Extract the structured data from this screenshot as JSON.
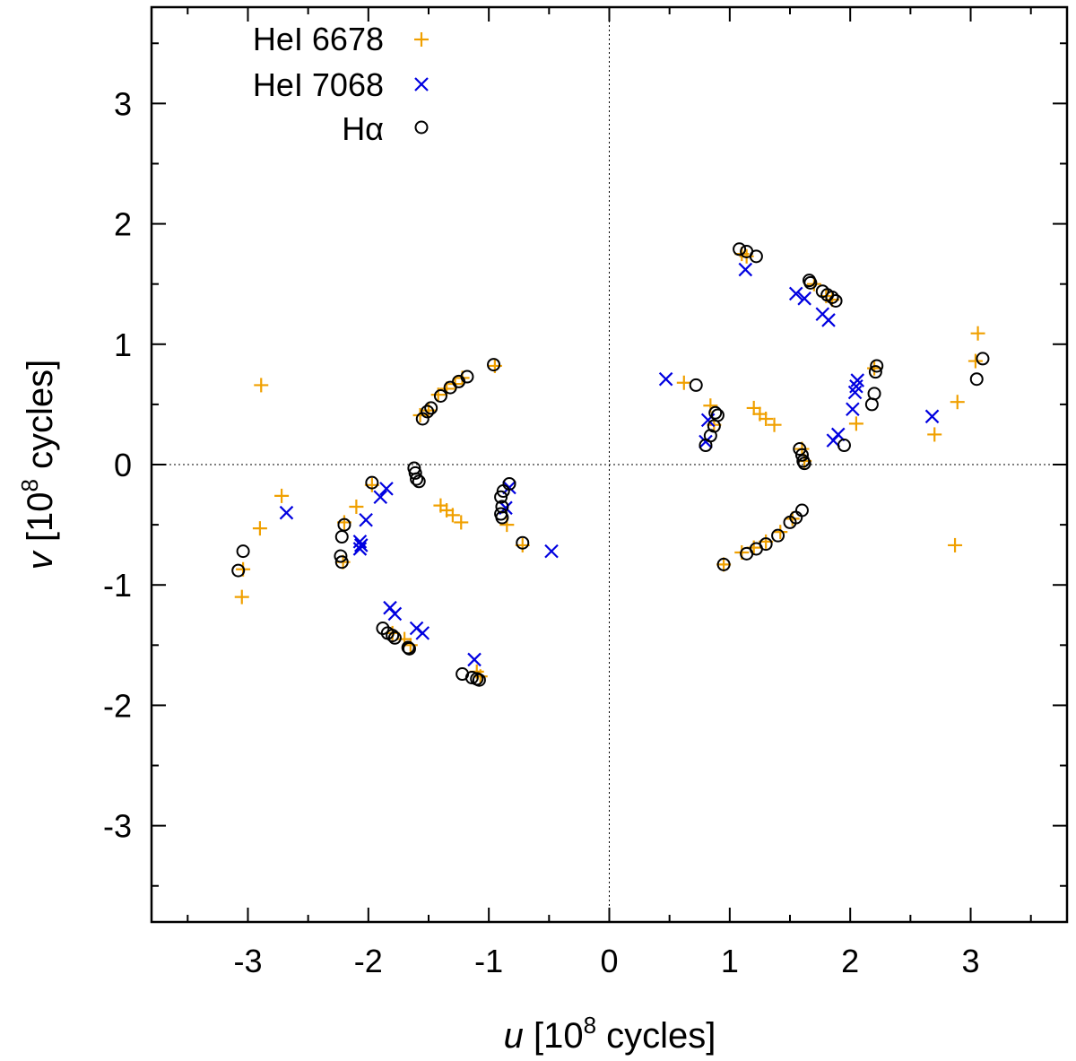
{
  "chart_data": {
    "type": "scatter",
    "title": "",
    "xlabel": {
      "var": "u",
      "unit_pre": " [10",
      "exp": "8",
      "unit_post": " cycles]"
    },
    "ylabel": {
      "var": "v",
      "unit_pre": " [10",
      "exp": "8",
      "unit_post": " cycles]"
    },
    "xlim": [
      -3.8,
      3.8
    ],
    "ylim": [
      -3.8,
      3.8
    ],
    "xticks": [
      -3,
      -2,
      -1,
      0,
      1,
      2,
      3
    ],
    "yticks": [
      -3,
      -2,
      -1,
      0,
      1,
      2,
      3
    ],
    "xtick_labels": [
      "-3",
      "-2",
      "-1",
      "0",
      "1",
      "2",
      "3"
    ],
    "ytick_labels": [
      "-3",
      "-2",
      "-1",
      "0",
      "1",
      "2",
      "3"
    ],
    "zero_lines": true,
    "legend_position": "top-left",
    "series": [
      {
        "name": "HeI 6678",
        "marker": "plus",
        "color": "#f0a000",
        "points": [
          [
            -2.89,
            0.66
          ],
          [
            3.06,
            1.09
          ],
          [
            3.04,
            0.86
          ],
          [
            2.89,
            0.52
          ],
          [
            2.7,
            0.25
          ],
          [
            2.87,
            -0.67
          ],
          [
            -2.9,
            -0.53
          ],
          [
            -2.72,
            -0.26
          ],
          [
            -3.04,
            -0.87
          ],
          [
            -3.05,
            -1.1
          ],
          [
            -1.57,
            0.41
          ],
          [
            -1.5,
            0.45
          ],
          [
            -1.42,
            0.58
          ],
          [
            -1.35,
            0.63
          ],
          [
            -1.28,
            0.67
          ],
          [
            -1.22,
            0.72
          ],
          [
            -0.95,
            0.82
          ],
          [
            -1.4,
            -0.34
          ],
          [
            -1.35,
            -0.38
          ],
          [
            -1.3,
            -0.42
          ],
          [
            -1.23,
            -0.48
          ],
          [
            -0.85,
            -0.5
          ],
          [
            -0.72,
            -0.67
          ],
          [
            -2.1,
            -0.35
          ],
          [
            -1.97,
            -0.17
          ],
          [
            -2.2,
            -0.48
          ],
          [
            -2.21,
            -0.81
          ],
          [
            -1.8,
            -1.4
          ],
          [
            -1.7,
            -1.45
          ],
          [
            -1.65,
            -1.5
          ],
          [
            -1.1,
            -1.72
          ],
          [
            -1.07,
            -1.76
          ],
          [
            0.62,
            0.68
          ],
          [
            0.84,
            0.49
          ],
          [
            0.87,
            0.33
          ],
          [
            1.2,
            0.47
          ],
          [
            1.25,
            0.42
          ],
          [
            1.3,
            0.38
          ],
          [
            1.37,
            0.33
          ],
          [
            1.1,
            1.75
          ],
          [
            1.14,
            1.73
          ],
          [
            1.7,
            1.5
          ],
          [
            1.8,
            1.4
          ],
          [
            1.85,
            1.37
          ],
          [
            2.05,
            0.34
          ],
          [
            2.2,
            0.8
          ],
          [
            1.6,
            0.13
          ],
          [
            1.62,
            0.03
          ],
          [
            1.1,
            -0.73
          ],
          [
            1.2,
            -0.69
          ],
          [
            1.3,
            -0.64
          ],
          [
            1.42,
            -0.56
          ],
          [
            1.52,
            -0.45
          ],
          [
            0.95,
            -0.83
          ]
        ]
      },
      {
        "name": "HeI 7068",
        "marker": "cross",
        "color": "#0000e0",
        "points": [
          [
            -2.68,
            -0.4
          ],
          [
            -1.9,
            -0.27
          ],
          [
            -1.85,
            -0.2
          ],
          [
            -2.02,
            -0.46
          ],
          [
            -2.07,
            -0.64
          ],
          [
            -2.06,
            -0.67
          ],
          [
            -2.07,
            -0.7
          ],
          [
            -0.83,
            -0.19
          ],
          [
            -0.86,
            -0.36
          ],
          [
            -0.48,
            -0.72
          ],
          [
            -1.82,
            -1.19
          ],
          [
            -1.78,
            -1.24
          ],
          [
            -1.6,
            -1.36
          ],
          [
            -1.55,
            -1.4
          ],
          [
            -1.12,
            -1.62
          ],
          [
            0.47,
            0.71
          ],
          [
            0.8,
            0.19
          ],
          [
            0.82,
            0.37
          ],
          [
            1.13,
            1.62
          ],
          [
            1.55,
            1.42
          ],
          [
            1.62,
            1.38
          ],
          [
            1.77,
            1.25
          ],
          [
            1.82,
            1.2
          ],
          [
            1.86,
            0.2
          ],
          [
            1.9,
            0.25
          ],
          [
            2.02,
            0.46
          ],
          [
            2.04,
            0.6
          ],
          [
            2.05,
            0.65
          ],
          [
            2.06,
            0.7
          ],
          [
            2.68,
            0.4
          ]
        ]
      },
      {
        "name": "Hα",
        "marker": "circle",
        "color": "#000000",
        "points": [
          [
            -3.08,
            -0.88
          ],
          [
            -3.04,
            -0.72
          ],
          [
            -2.22,
            -0.6
          ],
          [
            -2.2,
            -0.5
          ],
          [
            -2.23,
            -0.76
          ],
          [
            -2.22,
            -0.81
          ],
          [
            -1.97,
            -0.15
          ],
          [
            -1.62,
            -0.03
          ],
          [
            -1.61,
            -0.07
          ],
          [
            -1.6,
            -0.12
          ],
          [
            -1.58,
            -0.14
          ],
          [
            -1.55,
            0.38
          ],
          [
            -1.51,
            0.44
          ],
          [
            -1.48,
            0.47
          ],
          [
            -1.4,
            0.57
          ],
          [
            -1.32,
            0.64
          ],
          [
            -1.25,
            0.69
          ],
          [
            -1.18,
            0.73
          ],
          [
            -0.96,
            0.83
          ],
          [
            -0.83,
            -0.16
          ],
          [
            -0.88,
            -0.22
          ],
          [
            -0.9,
            -0.27
          ],
          [
            -0.89,
            -0.35
          ],
          [
            -0.9,
            -0.41
          ],
          [
            -0.89,
            -0.44
          ],
          [
            -0.72,
            -0.65
          ],
          [
            -1.88,
            -1.36
          ],
          [
            -1.84,
            -1.4
          ],
          [
            -1.8,
            -1.42
          ],
          [
            -1.78,
            -1.44
          ],
          [
            -1.67,
            -1.52
          ],
          [
            -1.66,
            -1.53
          ],
          [
            -1.22,
            -1.74
          ],
          [
            -1.14,
            -1.77
          ],
          [
            -1.1,
            -1.78
          ],
          [
            -1.08,
            -1.79
          ],
          [
            0.8,
            0.16
          ],
          [
            0.84,
            0.24
          ],
          [
            0.87,
            0.32
          ],
          [
            0.9,
            0.41
          ],
          [
            0.88,
            0.43
          ],
          [
            0.72,
            0.66
          ],
          [
            1.08,
            1.79
          ],
          [
            1.14,
            1.77
          ],
          [
            1.22,
            1.73
          ],
          [
            1.66,
            1.53
          ],
          [
            1.67,
            1.51
          ],
          [
            1.77,
            1.44
          ],
          [
            1.81,
            1.41
          ],
          [
            1.85,
            1.39
          ],
          [
            1.88,
            1.36
          ],
          [
            1.58,
            0.13
          ],
          [
            1.6,
            0.08
          ],
          [
            1.61,
            0.03
          ],
          [
            1.62,
            0.01
          ],
          [
            1.95,
            0.16
          ],
          [
            2.18,
            0.5
          ],
          [
            2.2,
            0.59
          ],
          [
            2.21,
            0.77
          ],
          [
            2.22,
            0.82
          ],
          [
            3.05,
            0.71
          ],
          [
            3.1,
            0.88
          ],
          [
            0.95,
            -0.83
          ],
          [
            1.14,
            -0.74
          ],
          [
            1.22,
            -0.7
          ],
          [
            1.3,
            -0.66
          ],
          [
            1.4,
            -0.59
          ],
          [
            1.5,
            -0.48
          ],
          [
            1.55,
            -0.44
          ],
          [
            1.6,
            -0.38
          ]
        ]
      }
    ]
  }
}
